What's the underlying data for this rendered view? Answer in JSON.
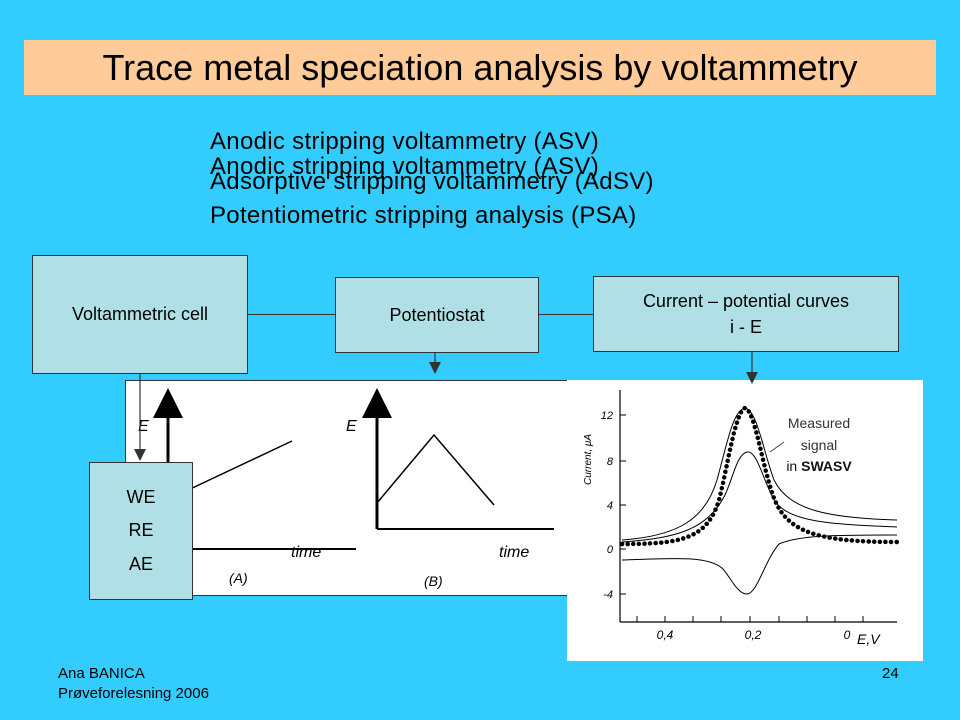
{
  "slide": {
    "title": "Trace metal speciation analysis by voltammetry",
    "bullets": [
      "Anodic stripping voltammetry (ASV)",
      "Anodic stripping voltammetry (ASV)",
      "Adsorptive stripping voltammetry (AdSV)",
      "Potentiometric stripping analysis (PSA)"
    ],
    "colors": {
      "background": "#33CCFF",
      "title_band": "#FFCC99",
      "box_fill": "#B0E0E6"
    }
  },
  "diagram": {
    "voltammetric_cell": "Voltammetric cell",
    "potentiostat": "Potentiostat",
    "curves_line1": "Current – potential curves",
    "curves_line2": "i - E",
    "electrodes": [
      "WE",
      "RE",
      "AE"
    ]
  },
  "waveforms": {
    "y_label": "E",
    "x_label": "time",
    "panel_a": "(A)",
    "panel_b": "(B)"
  },
  "voltammogram": {
    "y_axis_label": "Current, μA",
    "x_axis_label": "E,V",
    "y_ticks": [
      "12",
      "8",
      "4",
      "0",
      "-4"
    ],
    "x_ticks": [
      "0,4",
      "0,2",
      "0"
    ],
    "annotation_line1": "Measured",
    "annotation_line2": "signal",
    "annotation_line3_prefix": "in ",
    "annotation_line3_bold": "SWASV"
  },
  "footer": {
    "author": "Ana BANICA",
    "event": "Prøveforelesning 2006",
    "page_number": "24"
  }
}
